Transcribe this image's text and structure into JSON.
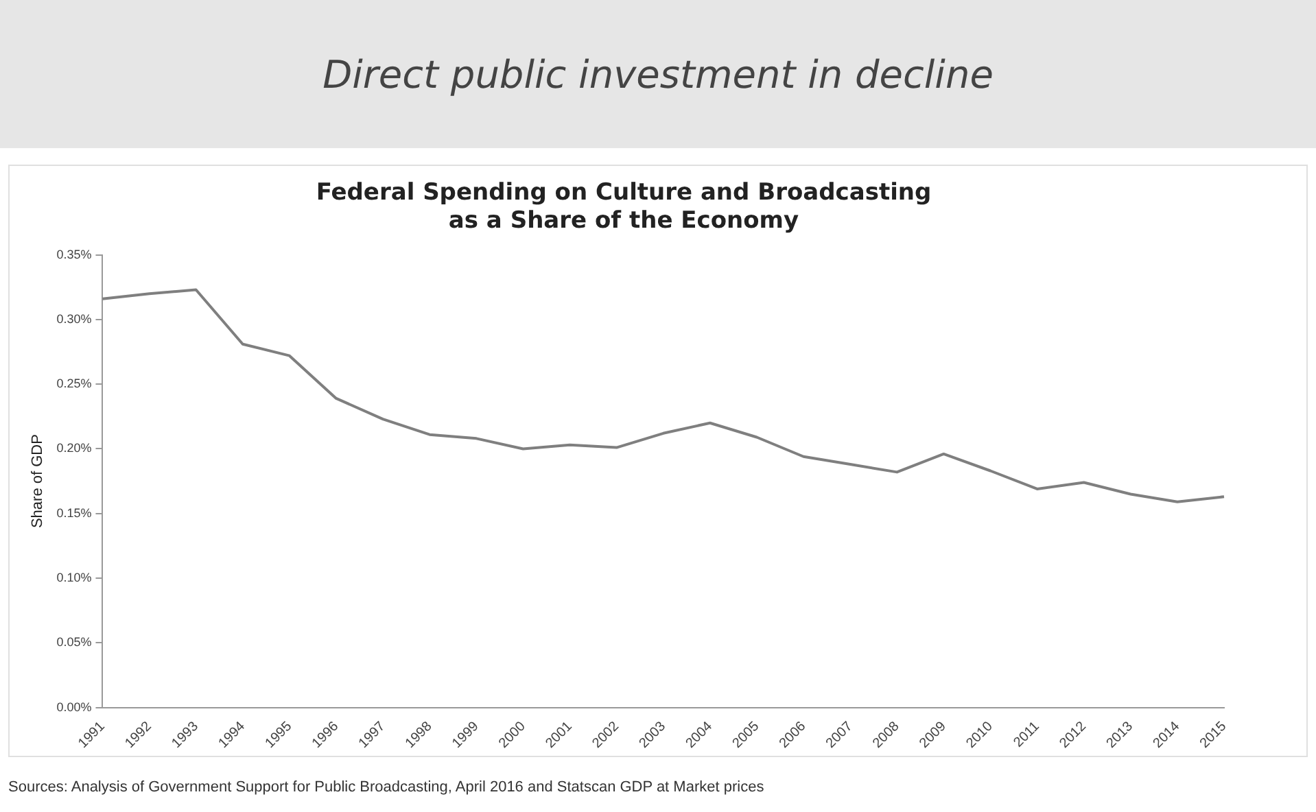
{
  "chart_data": {
    "type": "line",
    "title": "Direct public investment in decline",
    "subtitle": "Federal Spending on Culture and Broadcasting as a Share of the Economy",
    "ylabel": "Share of GDP",
    "categories": [
      "1991",
      "1992",
      "1993",
      "1994",
      "1995",
      "1996",
      "1997",
      "1998",
      "1999",
      "2000",
      "2001",
      "2002",
      "2003",
      "2004",
      "2005",
      "2006",
      "2007",
      "2008",
      "2009",
      "2010",
      "2011",
      "2012",
      "2013",
      "2014",
      "2015"
    ],
    "series": [
      {
        "color": "#7f7f7f",
        "values": [
          0.316,
          0.32,
          0.323,
          0.281,
          0.272,
          0.239,
          0.223,
          0.211,
          0.208,
          0.2,
          0.203,
          0.201,
          0.212,
          0.22,
          0.209,
          0.194,
          0.188,
          0.182,
          0.196,
          0.183,
          0.169,
          0.174,
          0.165,
          0.159,
          0.163
        ]
      }
    ],
    "ylim": [
      0,
      0.35
    ],
    "yticks": [
      {
        "value": 0,
        "label": "0.00%"
      },
      {
        "value": 0.05,
        "label": "0.05%"
      },
      {
        "value": 0.1,
        "label": "0.10%"
      },
      {
        "value": 0.15,
        "label": "0.15%"
      },
      {
        "value": 0.2,
        "label": "0.20%"
      },
      {
        "value": 0.25,
        "label": "0.25%"
      },
      {
        "value": 0.3,
        "label": "0.30%"
      },
      {
        "value": 0.35,
        "label": "0.35%"
      }
    ],
    "grid": false,
    "legend": false,
    "marker": "none",
    "line_style": "solid",
    "annotations": [
      "Sources: Analysis of Government Support for Public Broadcasting, April 2016 and Statscan GDP at Market prices"
    ]
  }
}
